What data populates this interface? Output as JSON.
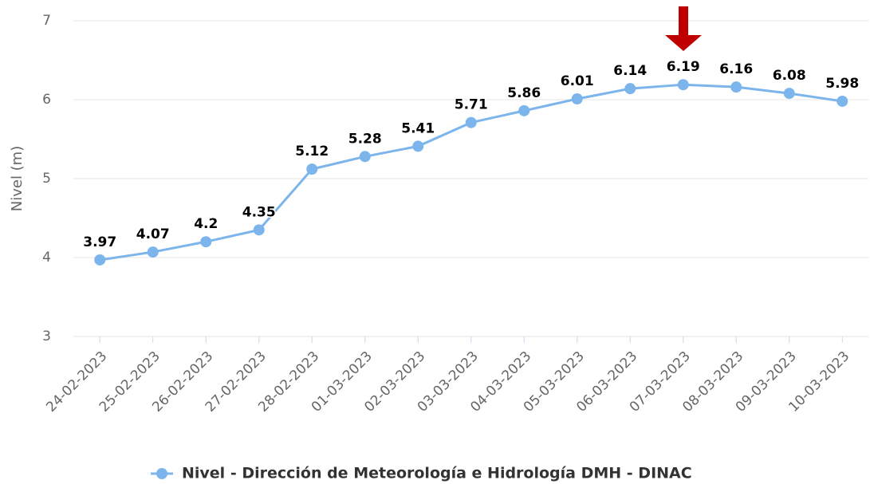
{
  "chart_data": {
    "type": "line",
    "y_label": "Nivel (m)",
    "categories": [
      "24-02-2023",
      "25-02-2023",
      "26-02-2023",
      "27-02-2023",
      "28-02-2023",
      "01-03-2023",
      "02-03-2023",
      "03-03-2023",
      "04-03-2023",
      "05-03-2023",
      "06-03-2023",
      "07-03-2023",
      "08-03-2023",
      "09-03-2023",
      "10-03-2023"
    ],
    "series": [
      {
        "name": "Nivel - Dirección de Meteorología e Hidrología DMH - DINAC",
        "color": "#7cb5ec",
        "values": [
          3.97,
          4.07,
          4.2,
          4.35,
          5.12,
          5.28,
          5.41,
          5.71,
          5.86,
          6.01,
          6.14,
          6.19,
          6.16,
          6.08,
          5.98
        ]
      }
    ],
    "ylim": [
      3,
      7
    ],
    "yticks": [
      3,
      4,
      5,
      6,
      7
    ],
    "grid": true
  }
}
